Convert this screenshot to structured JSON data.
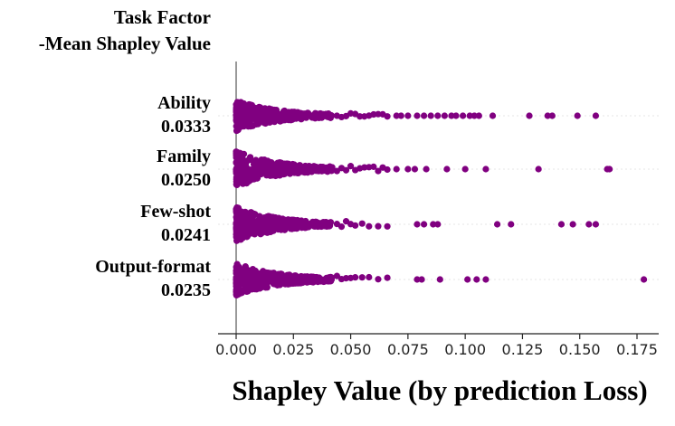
{
  "chart_data": {
    "type": "scatter",
    "subtype": "swarm",
    "ylabel_lines": [
      "Task Factor",
      "-Mean Shapley Value"
    ],
    "xlabel": "Shapley Value (by prediction Loss)",
    "xlim": [
      -0.008,
      0.187
    ],
    "xticks": [
      0.0,
      0.025,
      0.05,
      0.075,
      0.1,
      0.125,
      0.15,
      0.175
    ],
    "xtick_labels": [
      "0.000",
      "0.025",
      "0.050",
      "0.075",
      "0.100",
      "0.125",
      "0.150",
      "0.175"
    ],
    "grid": "horizontal-dotted",
    "marker_color": "#800080",
    "categories": [
      {
        "name": "Ability",
        "mean_label": "0.0333",
        "outliers": [
          0.044,
          0.046,
          0.048,
          0.05,
          0.052,
          0.054,
          0.056,
          0.058,
          0.06,
          0.062,
          0.064,
          0.066,
          0.07,
          0.072,
          0.075,
          0.079,
          0.082,
          0.085,
          0.088,
          0.091,
          0.094,
          0.096,
          0.099,
          0.102,
          0.104,
          0.106,
          0.112,
          0.128,
          0.136,
          0.138,
          0.149,
          0.157
        ]
      },
      {
        "name": "Family",
        "mean_label": "0.0250",
        "outliers": [
          0.044,
          0.046,
          0.048,
          0.05,
          0.052,
          0.054,
          0.056,
          0.058,
          0.06,
          0.062,
          0.064,
          0.066,
          0.07,
          0.075,
          0.078,
          0.083,
          0.092,
          0.1,
          0.109,
          0.132,
          0.162,
          0.163
        ]
      },
      {
        "name": "Few-shot",
        "mean_label": "0.0241",
        "outliers": [
          0.044,
          0.046,
          0.048,
          0.05,
          0.052,
          0.055,
          0.058,
          0.062,
          0.066,
          0.079,
          0.082,
          0.086,
          0.088,
          0.114,
          0.12,
          0.142,
          0.147,
          0.154,
          0.157
        ]
      },
      {
        "name": "Output-format",
        "mean_label": "0.0235",
        "outliers": [
          0.044,
          0.046,
          0.048,
          0.05,
          0.052,
          0.055,
          0.058,
          0.062,
          0.066,
          0.079,
          0.081,
          0.089,
          0.101,
          0.105,
          0.109,
          0.178
        ]
      }
    ]
  }
}
